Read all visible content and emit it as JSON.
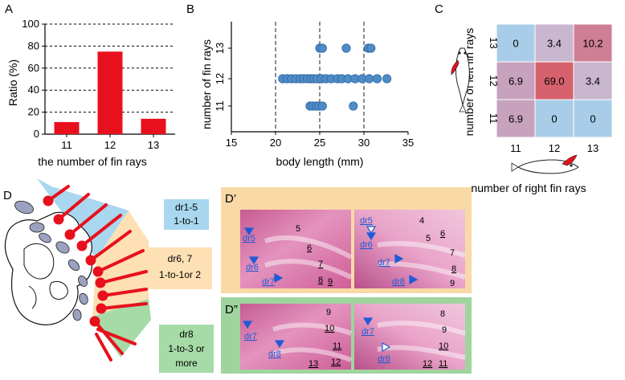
{
  "panels": {
    "a": "A",
    "b": "B",
    "c": "C",
    "d": "D",
    "d_prime": "D’",
    "d_dprime": "D”"
  },
  "colors": {
    "bar": "#e8101c",
    "dot": "#4f8cc6",
    "dot_edge": "#2f6aa8",
    "blue_zone": "#a9d7ef",
    "orange_zone": "#fde0b3",
    "green_zone": "#a6dba7",
    "orange_frame": "#f9d9a6",
    "green_frame": "#9fd49f",
    "tissue": "#d86aa0",
    "label_blue": "#1f5bd6"
  },
  "chart_data": [
    {
      "type": "bar",
      "categories": [
        "11",
        "12",
        "13"
      ],
      "values": [
        11,
        75,
        14
      ],
      "xlabel": "the number of fin rays",
      "ylabel": "Ratio (%)",
      "ylim": [
        0,
        100
      ],
      "yticks": [
        "0",
        "20",
        "40",
        "60",
        "80",
        "100"
      ],
      "grid": "dashed horizontal"
    },
    {
      "type": "scatter",
      "xlabel": "body length (mm)",
      "ylabel": "number of fin rays",
      "xlim": [
        15,
        35
      ],
      "xticks": [
        "15",
        "20",
        "25",
        "30",
        "35"
      ],
      "ycategories": [
        "11",
        "12",
        "13"
      ],
      "vlines": [
        20,
        25,
        30
      ],
      "points": [
        {
          "x": 25.0,
          "y": 13
        },
        {
          "x": 25.3,
          "y": 13
        },
        {
          "x": 28.0,
          "y": 13
        },
        {
          "x": 30.5,
          "y": 13
        },
        {
          "x": 30.8,
          "y": 13
        },
        {
          "x": 20.8,
          "y": 12
        },
        {
          "x": 21.3,
          "y": 12
        },
        {
          "x": 21.8,
          "y": 12
        },
        {
          "x": 22.3,
          "y": 12
        },
        {
          "x": 22.8,
          "y": 12
        },
        {
          "x": 23.2,
          "y": 12
        },
        {
          "x": 23.6,
          "y": 12
        },
        {
          "x": 24.0,
          "y": 12
        },
        {
          "x": 24.3,
          "y": 12
        },
        {
          "x": 24.7,
          "y": 12
        },
        {
          "x": 25.2,
          "y": 12
        },
        {
          "x": 25.7,
          "y": 12
        },
        {
          "x": 26.3,
          "y": 12
        },
        {
          "x": 27.0,
          "y": 12
        },
        {
          "x": 27.5,
          "y": 12
        },
        {
          "x": 28.2,
          "y": 12
        },
        {
          "x": 29.0,
          "y": 12
        },
        {
          "x": 29.8,
          "y": 12
        },
        {
          "x": 30.6,
          "y": 12
        },
        {
          "x": 31.5,
          "y": 12
        },
        {
          "x": 32.6,
          "y": 12
        },
        {
          "x": 23.9,
          "y": 11
        },
        {
          "x": 24.2,
          "y": 11
        },
        {
          "x": 24.6,
          "y": 11
        },
        {
          "x": 24.9,
          "y": 11
        },
        {
          "x": 25.3,
          "y": 11
        },
        {
          "x": 28.8,
          "y": 11
        }
      ]
    },
    {
      "type": "heatmap",
      "xlabel": "number of right fin rays",
      "ylabel": "number of left fin rays",
      "xcategories": [
        "11",
        "12",
        "13"
      ],
      "ycategories": [
        "13",
        "12",
        "11"
      ],
      "cells": [
        [
          "0",
          "3.4",
          "10.2"
        ],
        [
          "6.9",
          "69.0",
          "3.4"
        ],
        [
          "6.9",
          "0",
          "0"
        ]
      ],
      "cell_colors": [
        [
          "#a9cde8",
          "#c9b6cf",
          "#cf7f95"
        ],
        [
          "#c7a2bc",
          "#d6626e",
          "#c9b6cf"
        ],
        [
          "#c7a2bc",
          "#a9cde8",
          "#a9cde8"
        ]
      ]
    }
  ],
  "diagram_d": {
    "labels": [
      {
        "line1": "dr1-5",
        "line2": "1-to-1"
      },
      {
        "line1": "dr6, 7",
        "line2": "1-to-1or 2"
      },
      {
        "line1": "dr8",
        "line2": "1-to-3 or",
        "line3": "more"
      }
    ]
  },
  "histo": {
    "d1_left": [
      "5",
      "6",
      "7",
      "8",
      "9",
      "dr5",
      "dr6",
      "dr7"
    ],
    "d1_right": [
      "dr5",
      "4",
      "5",
      "6",
      "7",
      "8",
      "9",
      "dr6",
      "dr7",
      "dr8"
    ],
    "d2_left": [
      "9",
      "10",
      "11",
      "12",
      "13",
      "dr7",
      "dr8"
    ],
    "d2_right": [
      "8",
      "9",
      "10",
      "11",
      "12",
      "dr7",
      "dr8"
    ]
  }
}
